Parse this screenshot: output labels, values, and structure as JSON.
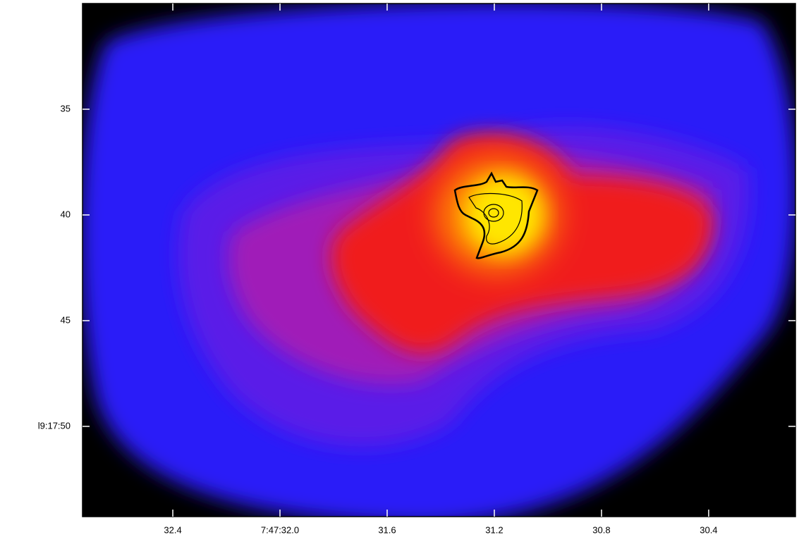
{
  "chart_data": {
    "type": "image",
    "xlim": [
      32.737,
      30.076
    ],
    "xticks": [
      {
        "value": 32.4,
        "label": "32.4"
      },
      {
        "value": 32.0,
        "label": "7:47:32.0"
      },
      {
        "value": 31.6,
        "label": "31.6"
      },
      {
        "value": 31.2,
        "label": "31.2"
      },
      {
        "value": 30.8,
        "label": "30.8"
      },
      {
        "value": 30.4,
        "label": "30.4"
      }
    ],
    "ylim": [
      54.27,
      30
    ],
    "yticks": [
      35,
      40,
      45,
      {
        "value": 50,
        "label": "l9:17:50"
      }
    ]
  }
}
